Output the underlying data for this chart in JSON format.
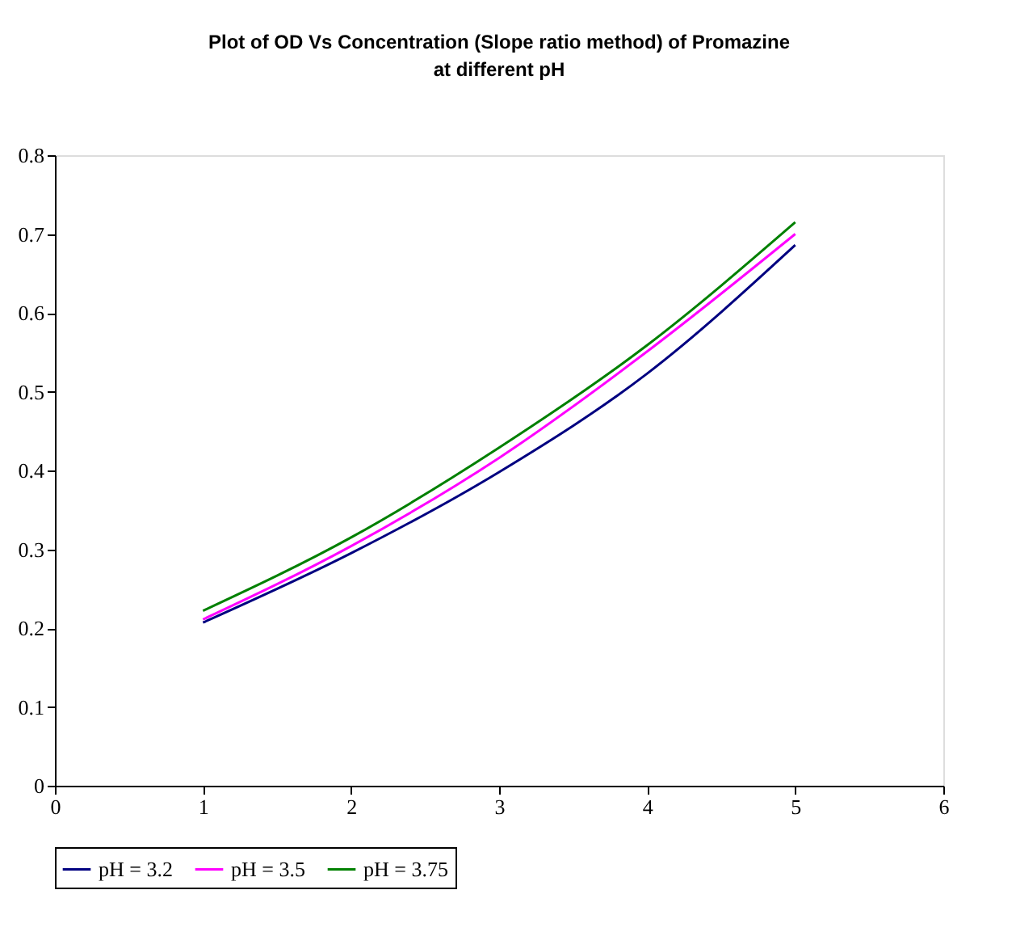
{
  "chart_data": {
    "type": "line",
    "title": "Plot of OD Vs Concentration (Slope ratio method) of Promazine at different pH",
    "x": [
      1,
      2,
      3,
      4,
      5
    ],
    "series": [
      {
        "name": "pH = 3.2",
        "color": "#000080",
        "values": [
          0.207,
          0.295,
          0.398,
          0.523,
          0.686
        ]
      },
      {
        "name": "pH = 3.5",
        "color": "#ff00ff",
        "values": [
          0.211,
          0.304,
          0.416,
          0.551,
          0.7
        ]
      },
      {
        "name": "pH = 3.75",
        "color": "#008000",
        "values": [
          0.222,
          0.315,
          0.429,
          0.559,
          0.715
        ]
      }
    ],
    "xlim": [
      0,
      6
    ],
    "xticks": [
      0,
      1,
      2,
      3,
      4,
      5,
      6
    ],
    "ylim": [
      0,
      0.8
    ],
    "yticks": [
      0,
      0.1,
      0.2,
      0.3,
      0.4,
      0.5,
      0.6,
      0.7,
      0.8
    ],
    "grid": false,
    "legend": "bottom",
    "marker": "none",
    "line_style": "solid"
  }
}
